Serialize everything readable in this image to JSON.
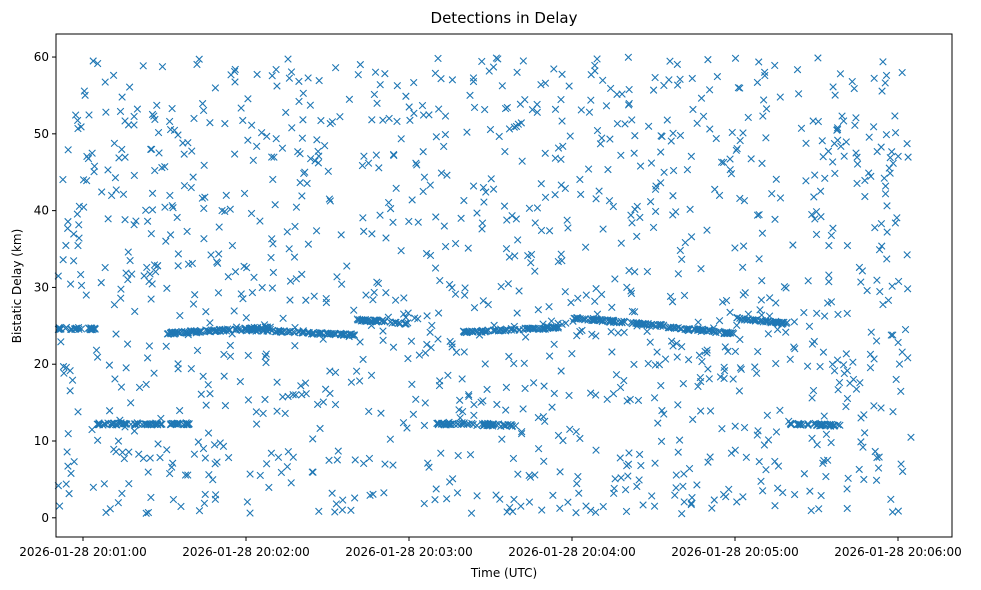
{
  "chart_data": {
    "type": "scatter",
    "title": "Detections in Delay",
    "xlabel": "Time (UTC)",
    "ylabel": "Bistatic Delay (km)",
    "marker": "x",
    "color": "#1f77b4",
    "grid": false,
    "x_range_seconds": [
      2,
      308
    ],
    "x_ticks": [
      {
        "value": 60,
        "label": "2026-01-28 20:01:00"
      },
      {
        "value": 120,
        "label": "2026-01-28 20:02:00"
      },
      {
        "value": 180,
        "label": "2026-01-28 20:03:00"
      },
      {
        "value": 240,
        "label": "2026-01-28 20:04:00"
      },
      {
        "value": 300,
        "label": "2026-01-28 20:05:00"
      },
      {
        "value": 360,
        "label": "2026-01-28 20:06:00"
      }
    ],
    "ylim": [
      -2.5,
      63
    ],
    "y_ticks": [
      0,
      10,
      20,
      30,
      40,
      50,
      60
    ],
    "time_span": [
      "2026-01-28 20:00:50",
      "2026-01-28 20:06:05"
    ],
    "tracks": [
      {
        "t_start": "20:00:50",
        "t_end": "20:01:05",
        "delay_start": 24.6,
        "delay_end": 24.6
      },
      {
        "t_start": "20:01:05",
        "t_end": "20:01:40",
        "delay_start": 12.2,
        "delay_end": 12.2
      },
      {
        "t_start": "20:01:30",
        "t_end": "20:02:10",
        "delay_start": 24.0,
        "delay_end": 24.8
      },
      {
        "t_start": "20:02:00",
        "t_end": "20:02:40",
        "delay_start": 24.5,
        "delay_end": 23.8
      },
      {
        "t_start": "20:02:40",
        "t_end": "20:03:00",
        "delay_start": 25.8,
        "delay_end": 25.3
      },
      {
        "t_start": "20:03:10",
        "t_end": "20:03:40",
        "delay_start": 12.3,
        "delay_end": 12.0
      },
      {
        "t_start": "20:03:20",
        "t_end": "20:03:55",
        "delay_start": 24.2,
        "delay_end": 24.8
      },
      {
        "t_start": "20:04:00",
        "t_end": "20:04:35",
        "delay_start": 26.0,
        "delay_end": 25.0
      },
      {
        "t_start": "20:04:35",
        "t_end": "20:05:00",
        "delay_start": 24.8,
        "delay_end": 24.0
      },
      {
        "t_start": "20:05:00",
        "t_end": "20:05:20",
        "delay_start": 26.0,
        "delay_end": 25.3
      },
      {
        "t_start": "20:05:20",
        "t_end": "20:05:40",
        "delay_start": 12.2,
        "delay_end": 12.0
      }
    ],
    "noise": {
      "count": 1250,
      "delay_range": [
        0.5,
        60
      ]
    }
  }
}
